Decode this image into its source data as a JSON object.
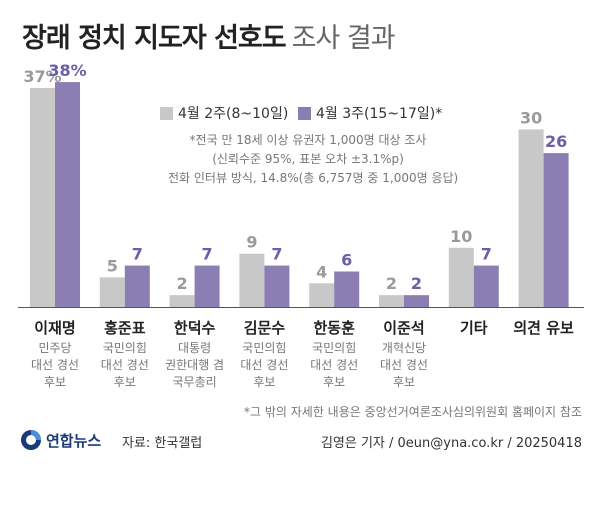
{
  "title": {
    "main": "장래 정치 지도자 선호도",
    "sub": "조사 결과"
  },
  "colors": {
    "s1": "#c8c8c8",
    "s2": "#8b7eb3",
    "label_s1": "#9a9a9a",
    "label_s2": "#6e5ea8"
  },
  "chart_data": {
    "type": "bar",
    "title": "장래 정치 지도자 선호도 조사 결과",
    "categories": [
      "이재명",
      "홍준표",
      "한덕수",
      "김문수",
      "한동훈",
      "이준석",
      "기타",
      "의견 유보"
    ],
    "series": [
      {
        "name": "4월 2주(8~10일)",
        "values": [
          37,
          5,
          2,
          9,
          4,
          2,
          10,
          30
        ],
        "labels": [
          "37%",
          "5",
          "2",
          "9",
          "4",
          "2",
          "10",
          "30"
        ]
      },
      {
        "name": "4월 3주(15~17일)*",
        "values": [
          38,
          7,
          7,
          7,
          6,
          2,
          7,
          26
        ],
        "labels": [
          "38%",
          "7",
          "7",
          "7",
          "6",
          "2",
          "7",
          "26"
        ]
      }
    ],
    "ylim": [
      0,
      40
    ],
    "xlabel": "",
    "ylabel": ""
  },
  "affiliations": [
    [
      "민주당",
      "대선 경선",
      "후보"
    ],
    [
      "국민의힘",
      "대선 경선",
      "후보"
    ],
    [
      "대통령",
      "권한대행 겸",
      "국무총리"
    ],
    [
      "국민의힘",
      "대선 경선",
      "후보"
    ],
    [
      "국민의힘",
      "대선 경선",
      "후보"
    ],
    [
      "개혁신당",
      "대선 경선",
      "후보"
    ],
    [],
    []
  ],
  "note": [
    "*전국 만 18세 이상 유권자 1,000명 대상 조사",
    "(신뢰수준 95%, 표본 오차 ±3.1%p)",
    "전화 인터뷰 방식, 14.8%(총 6,757명 중 1,000명 응답)"
  ],
  "footnote": "*그 밖의 자세한 내용은 중앙선거여론조사심의위원회 홈페이지 참조",
  "logo_text": "연합뉴스",
  "source": "자료: 한국갤럽",
  "credit": "김영은 기자 / 0eun@yna.co.kr / 20250418"
}
